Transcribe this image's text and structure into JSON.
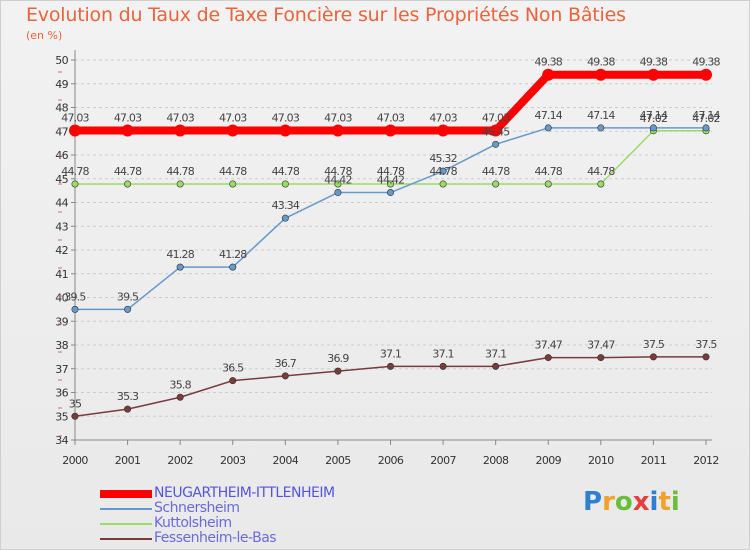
{
  "title": "Evolution du Taux de Taxe Foncière sur les Propriétés Non Bâties",
  "unit": "(en %)",
  "logo": {
    "text": "Proxiti",
    "colors": [
      "#2f7fd1",
      "#f4a12a",
      "#6abf3a",
      "#e83e3e",
      "#2f7fd1",
      "#f4a12a",
      "#6abf3a"
    ]
  },
  "chart_data": {
    "type": "line",
    "x": [
      "2000",
      "2001",
      "2002",
      "2003",
      "2004",
      "2005",
      "2006",
      "2007",
      "2008",
      "2009",
      "2010",
      "2011",
      "2012"
    ],
    "ylim": [
      34,
      50
    ],
    "yticks": [
      34,
      35,
      36,
      37,
      38,
      39,
      40,
      41,
      42,
      43,
      44,
      45,
      46,
      47,
      48,
      49,
      50
    ],
    "grid": "horizontal-dashed",
    "legend_position": "bottom-left",
    "series": [
      {
        "name": "NEUGARTHEIM-ITTLENHEIM",
        "color": "#ff0000",
        "width": 8,
        "values": [
          47.03,
          47.03,
          47.03,
          47.03,
          47.03,
          47.03,
          47.03,
          47.03,
          47.03,
          49.38,
          49.38,
          49.38,
          49.38
        ],
        "labels": [
          "47.03",
          "47.03",
          "47.03",
          "47.03",
          "47.03",
          "47.03",
          "47.03",
          "47.03",
          "47.03",
          "49.38",
          "49.38",
          "49.38",
          "49.38"
        ]
      },
      {
        "name": "Schnersheim",
        "color": "#6699cc",
        "width": 1.5,
        "values": [
          39.5,
          39.5,
          41.28,
          41.28,
          43.34,
          44.42,
          44.42,
          45.32,
          46.45,
          47.14,
          47.14,
          47.14,
          47.14
        ],
        "labels": [
          "39.5",
          "39.5",
          "41.28",
          "41.28",
          "43.34",
          "44.42",
          "44.42",
          "45.32",
          "46.45",
          "47.14",
          "47.14",
          "47.14",
          "47.14"
        ]
      },
      {
        "name": "Kuttolsheim",
        "color": "#99dd66",
        "width": 1.5,
        "values": [
          44.78,
          44.78,
          44.78,
          44.78,
          44.78,
          44.78,
          44.78,
          44.78,
          44.78,
          44.78,
          44.78,
          47.02,
          47.02
        ],
        "labels": [
          "44.78",
          "44.78",
          "44.78",
          "44.78",
          "44.78",
          "44.78",
          "44.78",
          "44.78",
          "44.78",
          "44.78",
          "44.78",
          "47.02",
          "47.02"
        ]
      },
      {
        "name": "Fessenheim-le-Bas",
        "color": "#7a3b3b",
        "width": 1.5,
        "values": [
          35,
          35.3,
          35.8,
          36.5,
          36.7,
          36.9,
          37.1,
          37.1,
          37.1,
          37.47,
          37.47,
          37.5,
          37.5
        ],
        "labels": [
          "35",
          "35.3",
          "35.8",
          "36.5",
          "36.7",
          "36.9",
          "37.1",
          "37.1",
          "37.1",
          "37.47",
          "37.47",
          "37.5",
          "37.5"
        ]
      }
    ]
  }
}
